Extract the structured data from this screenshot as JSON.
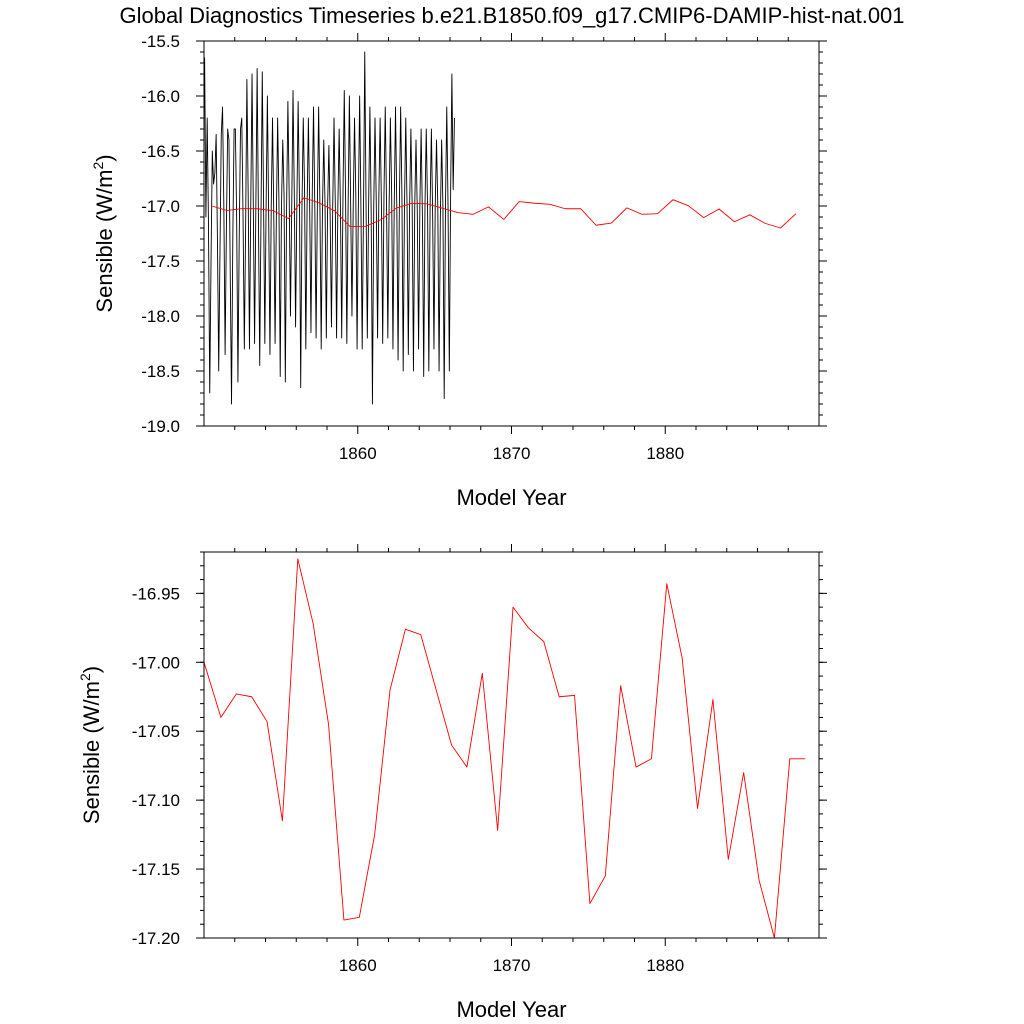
{
  "page_title": "Global Diagnostics Timeseries b.e21.B1850.f09_g17.CMIP6-DAMIP-hist-nat.001",
  "chart_data": [
    {
      "type": "line",
      "xlabel": "Model Year",
      "ylabel": "Sensible (W/m²)",
      "xlim": [
        1850,
        1890
      ],
      "ylim": [
        -19.0,
        -15.5
      ],
      "xticks": [
        1860,
        1870,
        1880
      ],
      "xtick_labels": [
        "1860",
        "1870",
        "1880"
      ],
      "yticks": [
        -19.0,
        -18.5,
        -18.0,
        -17.5,
        -17.0,
        -16.5,
        -16.0,
        -15.5
      ],
      "ytick_labels": [
        "-19.0",
        "-18.5",
        "-18.0",
        "-17.5",
        "-17.0",
        "-16.5",
        "-16.0",
        "-15.5"
      ],
      "grid": false,
      "series": [
        {
          "color": "#000000",
          "x_start": 1850.04,
          "x_step": 0.08333,
          "values": [
            -15.65,
            -17.1,
            -16.2,
            -17.15,
            -18.7,
            -17.5,
            -16.5,
            -16.8,
            -16.7,
            -16.35,
            -17.3,
            -18.5,
            -17.4,
            -16.35,
            -16.1,
            -17.0,
            -18.35,
            -17.2,
            -16.3,
            -16.4,
            -17.6,
            -18.8,
            -17.3,
            -16.3,
            -16.3,
            -17.1,
            -18.6,
            -17.3,
            -16.3,
            -16.2,
            -17.1,
            -18.3,
            -17.2,
            -15.85,
            -16.9,
            -18.3,
            -17.0,
            -15.8,
            -17.0,
            -18.25,
            -17.0,
            -15.75,
            -17.1,
            -18.45,
            -17.1,
            -15.78,
            -16.95,
            -18.25,
            -17.0,
            -16.0,
            -17.1,
            -18.35,
            -17.0,
            -16.2,
            -17.1,
            -18.25,
            -17.1,
            -16.2,
            -16.95,
            -18.55,
            -17.0,
            -16.4,
            -16.9,
            -18.6,
            -17.0,
            -16.05,
            -16.9,
            -18.0,
            -17.0,
            -15.95,
            -16.9,
            -18.1,
            -17.0,
            -16.05,
            -16.9,
            -18.65,
            -17.0,
            -16.2,
            -16.85,
            -18.3,
            -17.0,
            -16.2,
            -17.0,
            -18.15,
            -16.9,
            -16.1,
            -17.0,
            -18.2,
            -17.0,
            -16.1,
            -17.0,
            -18.3,
            -17.0,
            -16.4,
            -17.0,
            -18.2,
            -17.0,
            -16.45,
            -17.1,
            -18.1,
            -17.0,
            -16.2,
            -17.0,
            -18.2,
            -17.0,
            -16.3,
            -17.0,
            -18.2,
            -16.9,
            -15.95,
            -16.9,
            -18.25,
            -17.0,
            -16.0,
            -17.0,
            -18.0,
            -17.0,
            -16.2,
            -16.9,
            -18.3,
            -17.0,
            -16.0,
            -17.0,
            -18.3,
            -17.05,
            -15.6,
            -17.0,
            -18.2,
            -17.0,
            -16.1,
            -17.05,
            -18.8,
            -17.0,
            -16.2,
            -17.0,
            -18.2,
            -16.9,
            -16.2,
            -17.0,
            -18.25,
            -16.9,
            -16.1,
            -17.0,
            -18.2,
            -17.0,
            -16.2,
            -16.9,
            -18.3,
            -17.0,
            -16.1,
            -17.0,
            -18.4,
            -17.0,
            -16.1,
            -16.9,
            -18.5,
            -17.0,
            -16.2,
            -17.0,
            -18.35,
            -17.0,
            -16.3,
            -17.0,
            -18.5,
            -17.0,
            -16.4,
            -17.05,
            -18.3,
            -17.0,
            -16.3,
            -17.1,
            -18.55,
            -17.0,
            -16.3,
            -17.0,
            -18.5,
            -17.0,
            -16.3,
            -17.1,
            -18.3,
            -17.0,
            -16.4,
            -17.0,
            -18.5,
            -17.1,
            -16.4,
            -17.0,
            -18.75,
            -17.0,
            -16.1,
            -17.0,
            -18.5,
            -16.9,
            -15.8,
            -16.85,
            -16.2
          ]
        },
        {
          "color": "#ff0000",
          "x": [
            1850.5,
            1851.5,
            1852.5,
            1853.5,
            1854.5,
            1855.5,
            1856.5,
            1857.5,
            1858.5,
            1859.5,
            1860.5,
            1861.5,
            1862.5,
            1863.5,
            1864.5,
            1865.5,
            1866.5,
            1867.5,
            1868.5,
            1869.5,
            1870.5,
            1871.5,
            1872.5,
            1873.5,
            1874.5,
            1875.5,
            1876.5,
            1877.5,
            1878.5,
            1879.5,
            1880.5,
            1881.5,
            1882.5,
            1883.5,
            1884.5,
            1885.5,
            1886.5,
            1887.5,
            1888.5
          ],
          "values": [
            -17.0,
            -17.04,
            -17.023,
            -17.025,
            -17.043,
            -17.115,
            -16.925,
            -16.972,
            -17.045,
            -17.187,
            -17.185,
            -17.125,
            -17.02,
            -16.976,
            -16.98,
            -17.02,
            -17.06,
            -17.076,
            -17.008,
            -17.122,
            -16.96,
            -16.975,
            -16.985,
            -17.025,
            -17.024,
            -17.175,
            -17.155,
            -17.017,
            -17.076,
            -17.07,
            -16.943,
            -16.997,
            -17.106,
            -17.027,
            -17.143,
            -17.08,
            -17.158,
            -17.2,
            -17.07
          ]
        }
      ]
    },
    {
      "type": "line",
      "xlabel": "Model Year",
      "ylabel": "Sensible (W/m²)",
      "xlim": [
        1850,
        1890
      ],
      "ylim": [
        -17.2,
        -16.92
      ],
      "xticks": [
        1860,
        1870,
        1880
      ],
      "xtick_labels": [
        "1860",
        "1870",
        "1880"
      ],
      "yticks": [
        -17.2,
        -17.15,
        -17.1,
        -17.05,
        -17.0,
        -16.95
      ],
      "ytick_labels": [
        "-17.20",
        "-17.15",
        "-17.10",
        "-17.05",
        "-17.00",
        "-16.95"
      ],
      "grid": false,
      "series": [
        {
          "color": "#ff0000",
          "x": [
            1850.0,
            1851.1,
            1852.1,
            1853.1,
            1854.1,
            1855.1,
            1856.1,
            1857.1,
            1858.1,
            1859.1,
            1860.1,
            1861.1,
            1862.1,
            1863.1,
            1864.1,
            1865.1,
            1866.1,
            1867.1,
            1868.1,
            1869.1,
            1870.1,
            1871.1,
            1872.1,
            1873.1,
            1874.1,
            1875.1,
            1876.1,
            1877.1,
            1878.1,
            1879.1,
            1880.1,
            1881.1,
            1882.1,
            1883.1,
            1884.1,
            1885.1,
            1886.1,
            1887.1,
            1888.1,
            1889.1
          ],
          "values": [
            -17.0,
            -17.04,
            -17.023,
            -17.025,
            -17.043,
            -17.115,
            -16.925,
            -16.972,
            -17.045,
            -17.187,
            -17.185,
            -17.125,
            -17.02,
            -16.976,
            -16.98,
            -17.02,
            -17.06,
            -17.076,
            -17.008,
            -17.122,
            -16.96,
            -16.975,
            -16.985,
            -17.025,
            -17.024,
            -17.175,
            -17.155,
            -17.017,
            -17.076,
            -17.07,
            -16.943,
            -16.997,
            -17.106,
            -17.027,
            -17.143,
            -17.08,
            -17.158,
            -17.2,
            -17.07,
            -17.07
          ]
        }
      ]
    }
  ]
}
